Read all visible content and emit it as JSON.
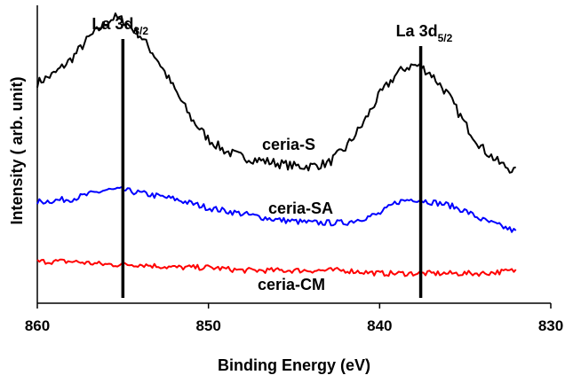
{
  "chart_data": {
    "type": "line",
    "xlabel": "Binding Energy (eV)",
    "ylabel": "Intensity ( arb. unit)",
    "xlim": [
      860,
      830
    ],
    "x_reversed": true,
    "xticks": [
      860,
      850,
      840,
      830
    ],
    "xtick_labels": [
      "860",
      "850",
      "840",
      "830"
    ],
    "y_unit": "arb. unit",
    "ylim": [
      0,
      100
    ],
    "grid": false,
    "legend": "none (series labelled inline)",
    "series": [
      {
        "name": "ceria-S",
        "color": "#000000",
        "x": [
          860,
          859,
          858,
          857,
          856,
          855.5,
          855,
          854,
          853,
          852,
          851,
          850,
          849,
          848,
          847,
          846,
          845,
          844,
          843,
          842,
          841,
          840,
          839,
          838.5,
          838,
          837.5,
          837,
          836,
          835,
          834,
          833,
          832
        ],
        "values": [
          74,
          77,
          82,
          89,
          94,
          96,
          95,
          90,
          82,
          72,
          62,
          55,
          51,
          49,
          48,
          47,
          46,
          46,
          47,
          52,
          60,
          70,
          77,
          79,
          80,
          79,
          77,
          70,
          60,
          52,
          47,
          44
        ]
      },
      {
        "name": "ceria-SA",
        "color": "#0000ff",
        "x": [
          860,
          858,
          856,
          855,
          854,
          852,
          850,
          848,
          846,
          844,
          842,
          840,
          839,
          838,
          837,
          836,
          835,
          834,
          833,
          832
        ],
        "values": [
          34,
          35,
          38,
          38,
          37,
          35,
          32,
          30,
          28,
          27,
          27,
          30,
          34,
          35,
          34,
          33,
          31,
          28,
          26,
          24
        ]
      },
      {
        "name": "ceria-CM",
        "color": "#ff0000",
        "x": [
          860,
          858,
          856,
          854,
          852,
          850,
          848,
          846,
          844,
          842,
          840,
          838,
          836,
          834,
          832
        ],
        "values": [
          14,
          14,
          13,
          13,
          12,
          12,
          11,
          11,
          11,
          11,
          10,
          10,
          10,
          10,
          11
        ]
      }
    ],
    "annotations": [
      {
        "label": "La 3d",
        "subscript": "3/2",
        "x": 855.0
      },
      {
        "label": "La 3d",
        "subscript": "5/2",
        "x": 837.6
      }
    ]
  }
}
